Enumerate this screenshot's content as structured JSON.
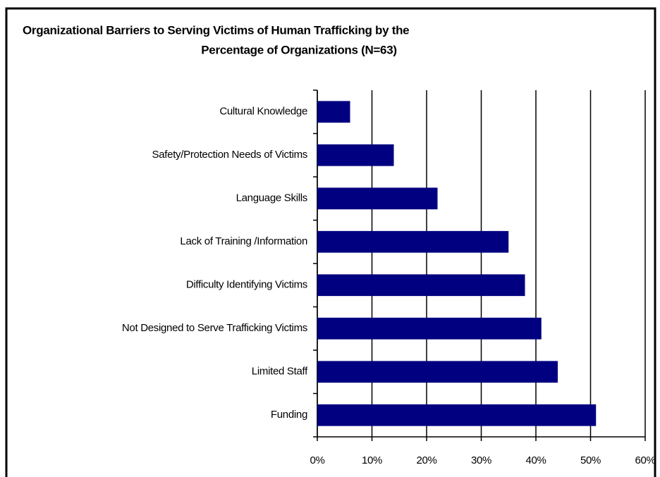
{
  "chart_data": {
    "type": "bar",
    "orientation": "horizontal",
    "title": [
      "Organizational Barriers to Serving Victims of Human Trafficking by the",
      "Percentage of Organizations  (N=63)"
    ],
    "categories": [
      "Cultural Knowledge",
      "Safety/Protection Needs of Victims",
      "Language Skills",
      "Lack of Training /Information",
      "Difficulty Identifying Victims",
      "Not Designed to Serve Trafficking Victims",
      "Limited Staff",
      "Funding"
    ],
    "values": [
      6,
      14,
      22,
      35,
      38,
      41,
      44,
      51
    ],
    "color": "#000080",
    "xlim": [
      0,
      60
    ],
    "xticks": [
      {
        "value": 0,
        "label": "0%"
      },
      {
        "value": 10,
        "label": "10%"
      },
      {
        "value": 20,
        "label": "20%"
      },
      {
        "value": 30,
        "label": "30%"
      },
      {
        "value": 40,
        "label": "40%"
      },
      {
        "value": 50,
        "label": "50%"
      },
      {
        "value": 60,
        "label": "60%"
      }
    ],
    "grid": true
  }
}
